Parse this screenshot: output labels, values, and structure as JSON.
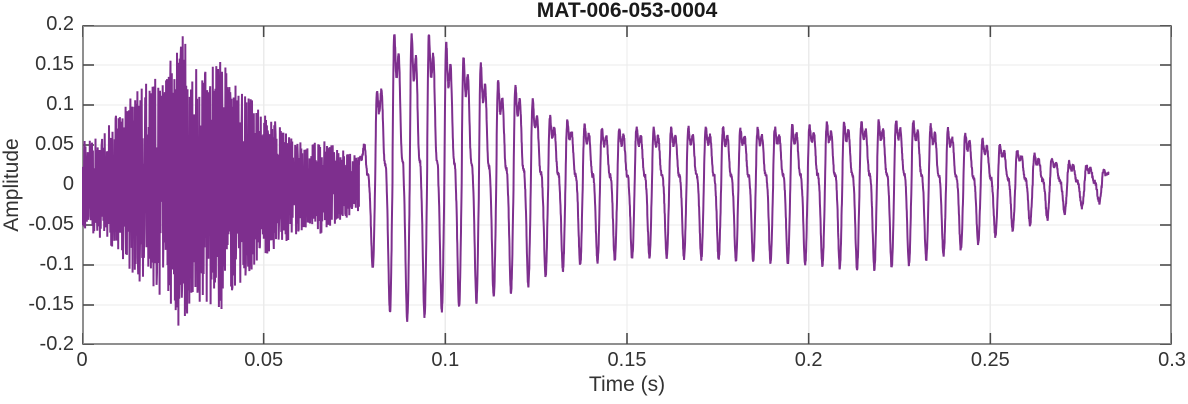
{
  "chart_data": {
    "type": "line",
    "title": "MAT-006-053-0004",
    "xlabel": "Time (s)",
    "ylabel": "Amplitude",
    "xlim": [
      0,
      0.3
    ],
    "ylim": [
      -0.2,
      0.2
    ],
    "grid": true,
    "xticks": {
      "values": [
        0,
        0.05,
        0.1,
        0.15,
        0.2,
        0.25,
        0.3
      ],
      "labels": [
        "0",
        "0.05",
        "0.1",
        "0.15",
        "0.2",
        "0.25",
        "0.3"
      ]
    },
    "yticks": {
      "values": [
        -0.2,
        -0.15,
        -0.1,
        -0.05,
        0,
        0.05,
        0.1,
        0.15,
        0.2
      ],
      "labels": [
        "-0.2",
        "-0.15",
        "-0.1",
        "-0.05",
        "0",
        "0.05",
        "0.1",
        "0.15",
        "0.2"
      ]
    },
    "colors": {
      "line": "#7E2F8E",
      "box": "#8f8f8f",
      "tick": "#4a4a4a",
      "grid": "#ebebeb",
      "label": "#333333",
      "title": "#1a1a1a",
      "background": "#ffffff"
    },
    "signal": {
      "description": "speech-like waveform: fricative noise burst then decaying voiced vowel",
      "t_end": 0.2825,
      "noise": {
        "t0": 0.0,
        "t1": 0.0762,
        "seed": 20240613,
        "envelope": [
          [
            0.0,
            0.055
          ],
          [
            0.004,
            0.065
          ],
          [
            0.008,
            0.08
          ],
          [
            0.012,
            0.1
          ],
          [
            0.016,
            0.125
          ],
          [
            0.02,
            0.135
          ],
          [
            0.024,
            0.155
          ],
          [
            0.028,
            0.195
          ],
          [
            0.03,
            0.15
          ],
          [
            0.034,
            0.145
          ],
          [
            0.038,
            0.16
          ],
          [
            0.042,
            0.13
          ],
          [
            0.047,
            0.105
          ],
          [
            0.052,
            0.085
          ],
          [
            0.057,
            0.068
          ],
          [
            0.062,
            0.052
          ],
          [
            0.066,
            0.062
          ],
          [
            0.07,
            0.048
          ],
          [
            0.074,
            0.04
          ],
          [
            0.0762,
            0.035
          ]
        ]
      },
      "voiced": {
        "t0": 0.0762,
        "t1": 0.2825,
        "pitch_hz": 210,
        "harmonics": [
          [
            1,
            1.0,
            0.0
          ],
          [
            2,
            0.5,
            1.0
          ],
          [
            3,
            0.3,
            2.0
          ]
        ],
        "pos_env": [
          [
            0.0762,
            0.03
          ],
          [
            0.079,
            0.085
          ],
          [
            0.082,
            0.13
          ],
          [
            0.0848,
            0.19
          ],
          [
            0.0888,
            0.19
          ],
          [
            0.0929,
            0.185
          ],
          [
            0.0972,
            0.19
          ],
          [
            0.101,
            0.175
          ],
          [
            0.105,
            0.16
          ],
          [
            0.109,
            0.155
          ],
          [
            0.113,
            0.135
          ],
          [
            0.117,
            0.12
          ],
          [
            0.121,
            0.125
          ],
          [
            0.125,
            0.1
          ],
          [
            0.129,
            0.085
          ],
          [
            0.133,
            0.08
          ],
          [
            0.138,
            0.075
          ],
          [
            0.143,
            0.07
          ],
          [
            0.15,
            0.072
          ],
          [
            0.16,
            0.07
          ],
          [
            0.17,
            0.072
          ],
          [
            0.18,
            0.07
          ],
          [
            0.19,
            0.072
          ],
          [
            0.2,
            0.075
          ],
          [
            0.21,
            0.078
          ],
          [
            0.22,
            0.08
          ],
          [
            0.2265,
            0.082
          ],
          [
            0.233,
            0.075
          ],
          [
            0.24,
            0.068
          ],
          [
            0.247,
            0.058
          ],
          [
            0.254,
            0.048
          ],
          [
            0.261,
            0.04
          ],
          [
            0.268,
            0.032
          ],
          [
            0.274,
            0.026
          ],
          [
            0.279,
            0.022
          ],
          [
            0.2825,
            0.018
          ]
        ],
        "neg_env": [
          [
            0.0762,
            -0.03
          ],
          [
            0.079,
            -0.09
          ],
          [
            0.082,
            -0.13
          ],
          [
            0.0848,
            -0.16
          ],
          [
            0.0888,
            -0.17
          ],
          [
            0.0929,
            -0.165
          ],
          [
            0.0972,
            -0.16
          ],
          [
            0.101,
            -0.155
          ],
          [
            0.105,
            -0.15
          ],
          [
            0.109,
            -0.145
          ],
          [
            0.113,
            -0.14
          ],
          [
            0.117,
            -0.135
          ],
          [
            0.121,
            -0.13
          ],
          [
            0.125,
            -0.12
          ],
          [
            0.129,
            -0.11
          ],
          [
            0.133,
            -0.105
          ],
          [
            0.138,
            -0.1
          ],
          [
            0.143,
            -0.095
          ],
          [
            0.15,
            -0.092
          ],
          [
            0.16,
            -0.09
          ],
          [
            0.17,
            -0.092
          ],
          [
            0.18,
            -0.094
          ],
          [
            0.19,
            -0.096
          ],
          [
            0.2,
            -0.1
          ],
          [
            0.21,
            -0.103
          ],
          [
            0.22,
            -0.106
          ],
          [
            0.2265,
            -0.1
          ],
          [
            0.233,
            -0.092
          ],
          [
            0.24,
            -0.084
          ],
          [
            0.247,
            -0.072
          ],
          [
            0.254,
            -0.06
          ],
          [
            0.261,
            -0.049
          ],
          [
            0.268,
            -0.039
          ],
          [
            0.274,
            -0.03
          ],
          [
            0.279,
            -0.024
          ],
          [
            0.2825,
            -0.019
          ]
        ]
      }
    }
  }
}
